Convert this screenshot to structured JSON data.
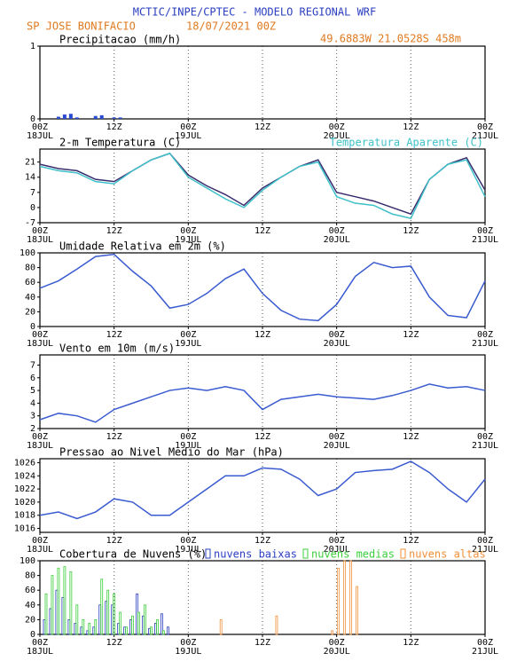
{
  "header": {
    "title": "MCTIC/INPE/CPTEC - MODELO REGIONAL WRF",
    "station": "SP JOSE BONIFACIO",
    "run": "18/07/2021 00Z",
    "location": "49.6883W 21.0528S 458m"
  },
  "time_axis": {
    "xlim": [
      0,
      72
    ],
    "xticks": [
      {
        "value": 0,
        "label": "00Z"
      },
      {
        "value": 12,
        "label": "12Z"
      },
      {
        "value": 24,
        "label": "00Z"
      },
      {
        "value": 36,
        "label": "12Z"
      },
      {
        "value": 48,
        "label": "00Z"
      },
      {
        "value": 60,
        "label": "12Z"
      },
      {
        "value": 72,
        "label": "00Z"
      }
    ],
    "dates": [
      "18JUL",
      null,
      "19JUL",
      null,
      "20JUL",
      null,
      "21JUL"
    ]
  },
  "chart_data": [
    {
      "type": "bar",
      "title": "Precipitacao (mm/h)",
      "x": [
        3,
        4,
        5,
        6,
        9,
        10,
        12,
        13
      ],
      "values": [
        0.03,
        0.06,
        0.07,
        0.02,
        0.04,
        0.05,
        0.02,
        0.02
      ],
      "color": "#2a4bd0",
      "ylim": [
        0,
        1
      ],
      "yticks": [
        0,
        1
      ]
    },
    {
      "type": "line",
      "x": [
        0,
        3,
        6,
        9,
        12,
        15,
        18,
        21,
        24,
        27,
        30,
        33,
        36,
        39,
        42,
        45,
        48,
        51,
        54,
        57,
        60,
        63,
        66,
        69,
        72
      ],
      "ylim": [
        -7,
        27
      ],
      "yticks": [
        21,
        14,
        7,
        0,
        -7
      ],
      "series": [
        {
          "name": "2-m Temperatura (C)",
          "color": "#3b2c6e",
          "values": [
            20,
            18,
            17,
            13,
            12,
            17,
            22,
            25,
            15,
            10,
            6,
            1,
            9,
            14,
            19,
            22,
            7,
            5,
            3,
            0,
            -3,
            13,
            20,
            23,
            8
          ]
        },
        {
          "name": "Temperatura Aparente (C)",
          "color": "#3fc1c9",
          "values": [
            19,
            17,
            16,
            12,
            11,
            17,
            22,
            25,
            14,
            9,
            4,
            0,
            8,
            14,
            19,
            21,
            5,
            2,
            1,
            -3,
            -5,
            13,
            20,
            22,
            5
          ]
        }
      ]
    },
    {
      "type": "line",
      "title": "Umidade Relativa em 2m (%)",
      "x": [
        0,
        3,
        6,
        9,
        12,
        15,
        18,
        21,
        24,
        27,
        30,
        33,
        36,
        39,
        42,
        45,
        48,
        51,
        54,
        57,
        60,
        63,
        66,
        69,
        72
      ],
      "values": [
        52,
        62,
        78,
        95,
        98,
        75,
        55,
        25,
        30,
        45,
        65,
        78,
        45,
        22,
        10,
        8,
        30,
        68,
        87,
        80,
        82,
        40,
        15,
        12,
        62
      ],
      "color": "#3a5bd0",
      "ylim": [
        0,
        100
      ],
      "yticks": [
        0,
        20,
        40,
        60,
        80,
        100
      ]
    },
    {
      "type": "line",
      "title": "Vento em 10m (m/s)",
      "x": [
        0,
        3,
        6,
        9,
        12,
        15,
        18,
        21,
        24,
        27,
        30,
        33,
        36,
        39,
        42,
        45,
        48,
        51,
        54,
        57,
        60,
        63,
        66,
        69,
        72
      ],
      "values": [
        2.7,
        3.2,
        3,
        2.5,
        3.5,
        4,
        4.5,
        5,
        5.2,
        5,
        5.3,
        5,
        3.5,
        4.3,
        4.5,
        4.7,
        4.5,
        4.4,
        4.3,
        4.6,
        5,
        5.5,
        5.2,
        5.3,
        5
      ],
      "color": "#3a5bd0",
      "ylim": [
        2,
        7.8
      ],
      "yticks": [
        2,
        3,
        4,
        5,
        6,
        7
      ]
    },
    {
      "type": "line",
      "title": "Pressao ao Nivel Medio do Mar (hPa)",
      "x": [
        0,
        3,
        6,
        9,
        12,
        15,
        18,
        21,
        24,
        27,
        30,
        33,
        36,
        39,
        42,
        45,
        48,
        51,
        54,
        57,
        60,
        63,
        66,
        69,
        72
      ],
      "values": [
        1018,
        1018.5,
        1017.5,
        1018.5,
        1020.5,
        1020,
        1018,
        1018,
        1020,
        1022,
        1024,
        1024,
        1025.2,
        1025,
        1023.5,
        1021,
        1022,
        1024.5,
        1024.8,
        1025,
        1026.2,
        1024.5,
        1022,
        1020,
        1023.5
      ],
      "color": "#3a5bd0",
      "ylim": [
        1015.4,
        1026.6
      ],
      "yticks": [
        1016,
        1018,
        1020,
        1022,
        1024,
        1026
      ]
    },
    {
      "type": "bar",
      "title": "Cobertura de Nuvens (%)",
      "x": [
        0,
        1,
        2,
        3,
        4,
        5,
        6,
        7,
        8,
        9,
        10,
        11,
        12,
        13,
        14,
        15,
        16,
        17,
        18,
        19,
        20,
        21,
        22,
        23,
        24,
        25,
        26,
        27,
        28,
        29,
        30,
        31,
        32,
        33,
        34,
        35,
        36,
        37,
        38,
        39,
        40,
        41,
        42,
        43,
        44,
        45,
        46,
        47,
        48,
        49,
        50,
        51,
        52,
        53,
        54,
        55,
        56,
        57,
        58,
        59,
        60,
        61,
        62,
        63,
        64,
        65,
        66,
        67,
        68,
        69,
        70,
        71,
        72
      ],
      "ylim": [
        0,
        100
      ],
      "yticks": [
        0,
        20,
        40,
        60,
        80,
        100
      ],
      "series": [
        {
          "name": "nuvens baixas",
          "color": "#2a3fc0",
          "values": [
            0,
            20,
            35,
            60,
            50,
            20,
            15,
            10,
            5,
            10,
            40,
            45,
            40,
            15,
            10,
            20,
            55,
            25,
            8,
            15,
            28,
            10,
            0,
            0,
            0,
            0,
            0,
            0,
            0,
            0,
            0,
            0,
            0,
            0,
            0,
            0,
            0,
            0,
            0,
            0,
            0,
            0,
            0,
            0,
            0,
            0,
            0,
            0,
            0,
            0,
            0,
            0,
            0,
            0,
            0,
            0,
            0,
            0,
            0,
            0,
            0,
            0,
            0,
            0,
            0,
            0,
            0,
            0,
            0,
            0,
            0,
            0,
            0
          ]
        },
        {
          "name": "nuvens medias",
          "color": "#3ccf3c",
          "values": [
            0,
            55,
            80,
            90,
            92,
            85,
            40,
            20,
            15,
            20,
            75,
            60,
            55,
            30,
            10,
            25,
            30,
            40,
            10,
            20,
            5,
            0,
            0,
            0,
            0,
            0,
            0,
            0,
            0,
            0,
            0,
            0,
            0,
            0,
            0,
            0,
            0,
            0,
            0,
            0,
            0,
            0,
            0,
            0,
            0,
            0,
            0,
            0,
            0,
            0,
            0,
            0,
            0,
            0,
            0,
            0,
            0,
            0,
            0,
            0,
            0,
            0,
            0,
            0,
            0,
            0,
            0,
            0,
            0,
            0,
            0,
            0,
            0
          ]
        },
        {
          "name": "nuvens altas",
          "color": "#f0903a",
          "values": [
            0,
            0,
            0,
            0,
            0,
            0,
            0,
            0,
            0,
            0,
            0,
            0,
            0,
            0,
            0,
            0,
            0,
            0,
            0,
            0,
            0,
            0,
            0,
            0,
            0,
            0,
            0,
            0,
            0,
            20,
            0,
            0,
            0,
            0,
            0,
            0,
            0,
            0,
            25,
            0,
            0,
            0,
            0,
            0,
            0,
            0,
            0,
            5,
            90,
            100,
            100,
            65,
            0,
            0,
            0,
            0,
            0,
            0,
            0,
            0,
            0,
            0,
            0,
            0,
            0,
            0,
            0,
            0,
            0,
            0,
            0,
            0,
            0
          ]
        }
      ]
    }
  ]
}
